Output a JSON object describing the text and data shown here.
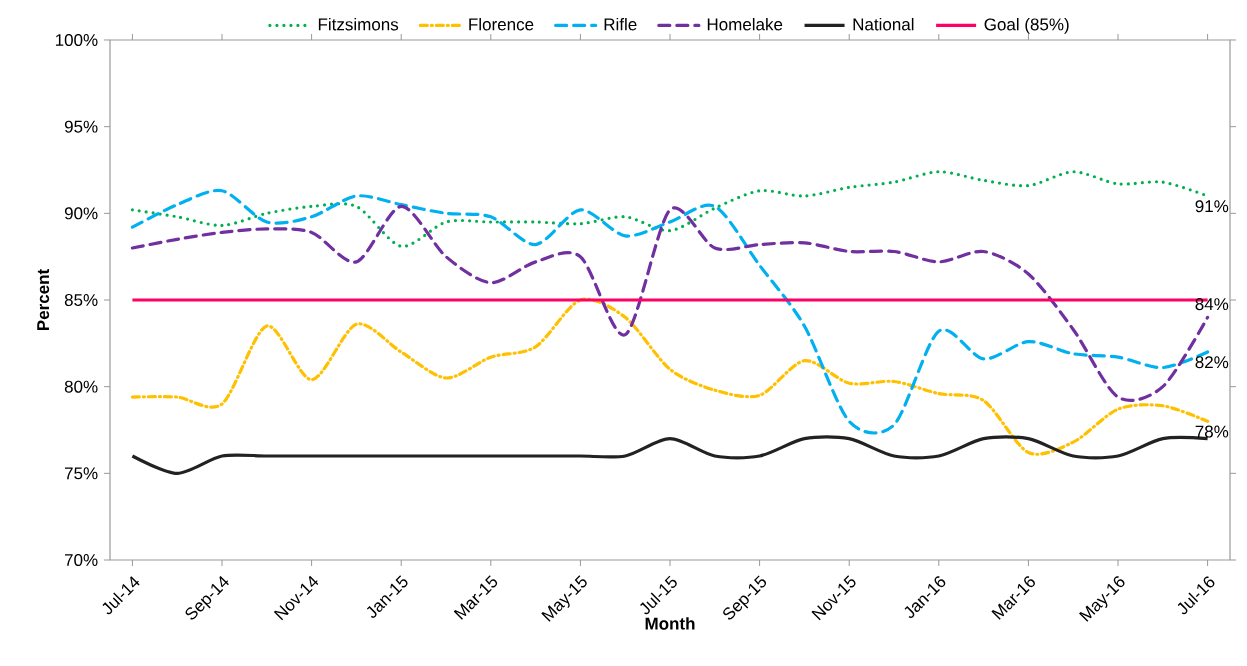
{
  "chart_data": {
    "type": "line",
    "xlabel": "Month",
    "ylabel": "Percent",
    "categories": [
      "Jul-14",
      null,
      "Sep-14",
      null,
      "Nov-14",
      null,
      "Jan-15",
      null,
      "Mar-15",
      null,
      "May-15",
      null,
      "Jul-15",
      null,
      "Sep-15",
      null,
      "Nov-15",
      null,
      "Jan-16",
      null,
      "Mar-16",
      null,
      "May-16",
      null,
      "Jul-16"
    ],
    "series": [
      {
        "name": "Fitzsimons",
        "color": "#00b050",
        "line_style": "dotted",
        "values": [
          90.2,
          89.8,
          89.3,
          90.0,
          90.4,
          90.4,
          88.1,
          89.5,
          89.5,
          89.5,
          89.4,
          89.8,
          89.0,
          90.3,
          91.3,
          91.0,
          91.5,
          91.8,
          92.4,
          91.9,
          91.6,
          92.4,
          91.7,
          91.8,
          91
        ],
        "value_labels": [
          null,
          null,
          null,
          null,
          null,
          null,
          null,
          null,
          null,
          null,
          null,
          null,
          null,
          null,
          null,
          null,
          null,
          null,
          null,
          null,
          null,
          null,
          null,
          null,
          "91%"
        ]
      },
      {
        "name": "Florence",
        "color": "#ffc000",
        "line_style": "dashdot",
        "values": [
          79.4,
          79.4,
          79.0,
          83.5,
          80.4,
          83.6,
          82.0,
          80.5,
          81.7,
          82.3,
          85.0,
          84.0,
          81.0,
          79.8,
          79.5,
          81.5,
          80.2,
          80.3,
          79.6,
          79.2,
          76.2,
          76.8,
          78.7,
          78.9,
          78
        ],
        "value_labels": [
          null,
          null,
          null,
          null,
          null,
          null,
          null,
          null,
          null,
          null,
          null,
          null,
          null,
          null,
          null,
          null,
          null,
          null,
          null,
          null,
          null,
          null,
          null,
          null,
          "78%"
        ]
      },
      {
        "name": "Rifle",
        "color": "#00b0f0",
        "line_style": "dashed",
        "values": [
          89.2,
          90.5,
          91.3,
          89.5,
          89.8,
          91.0,
          90.5,
          90.0,
          89.8,
          88.2,
          90.2,
          88.7,
          89.5,
          90.4,
          87.0,
          83.5,
          78.0,
          77.8,
          83.2,
          81.6,
          82.6,
          81.9,
          81.7,
          81.1,
          82
        ],
        "value_labels": [
          null,
          null,
          null,
          null,
          null,
          null,
          null,
          null,
          null,
          null,
          null,
          null,
          null,
          null,
          null,
          null,
          null,
          null,
          null,
          null,
          null,
          null,
          null,
          null,
          "82%"
        ]
      },
      {
        "name": "Homelake",
        "color": "#7030a0",
        "line_style": "dashed",
        "values": [
          88.0,
          88.5,
          88.9,
          89.1,
          88.9,
          87.2,
          90.4,
          87.5,
          86.0,
          87.2,
          87.5,
          83.0,
          90.2,
          88.0,
          88.2,
          88.3,
          87.8,
          87.8,
          87.2,
          87.8,
          86.5,
          83.3,
          79.4,
          80.0,
          84
        ],
        "value_labels": [
          null,
          null,
          null,
          null,
          null,
          null,
          null,
          null,
          null,
          null,
          null,
          null,
          null,
          null,
          null,
          null,
          null,
          null,
          null,
          null,
          null,
          null,
          null,
          null,
          "84%"
        ]
      },
      {
        "name": "National",
        "color": "#222222",
        "line_style": "solid",
        "values": [
          76,
          75,
          76,
          76,
          76,
          76,
          76,
          76,
          76,
          76,
          76,
          76,
          77,
          76,
          76,
          77,
          77,
          76,
          76,
          77,
          77,
          76,
          76,
          77,
          77
        ]
      },
      {
        "name": "Goal (85%)",
        "color": "#ff0066",
        "line_style": "solid",
        "values": [
          85,
          85,
          85,
          85,
          85,
          85,
          85,
          85,
          85,
          85,
          85,
          85,
          85,
          85,
          85,
          85,
          85,
          85,
          85,
          85,
          85,
          85,
          85,
          85,
          85
        ]
      }
    ],
    "ylim": [
      70,
      100
    ],
    "yticks": [
      {
        "value": 70,
        "label": "70%"
      },
      {
        "value": 75,
        "label": "75%"
      },
      {
        "value": 80,
        "label": "80%"
      },
      {
        "value": 85,
        "label": "85%"
      },
      {
        "value": 90,
        "label": "90%"
      },
      {
        "value": 95,
        "label": "95%"
      },
      {
        "value": 100,
        "label": "100%"
      }
    ],
    "grid": false,
    "legend": "top"
  }
}
